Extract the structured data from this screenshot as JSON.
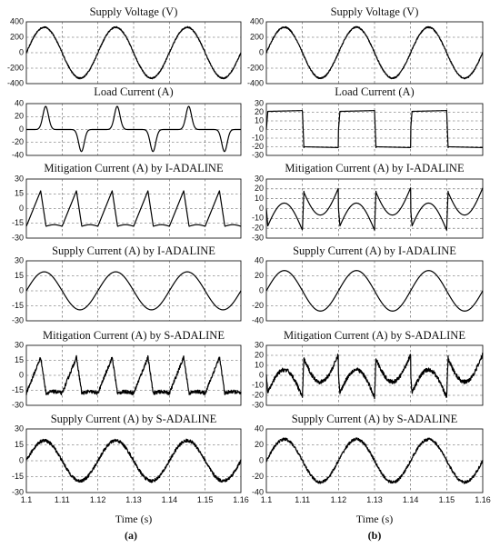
{
  "x_axis": {
    "label": "Time (s)",
    "ticks": [
      "1.1",
      "1.11",
      "1.12",
      "1.13",
      "1.14",
      "1.15",
      "1.16"
    ],
    "range": [
      1.1,
      1.16
    ]
  },
  "column_labels": [
    "(a)",
    "(b)"
  ],
  "chart_data": [
    {
      "type": "line",
      "column": "(a)",
      "row": 1,
      "title": "Supply Voltage (V)",
      "ylim": [
        -400,
        400
      ],
      "yticks": [
        "400",
        "200",
        "0",
        "-200",
        "-400"
      ],
      "grid": true,
      "description": "noisy sinusoid, amplitude about 330 V, period 0.02 s",
      "x": [
        1.1,
        1.105,
        1.11,
        1.115,
        1.12,
        1.125,
        1.13,
        1.135,
        1.14,
        1.145,
        1.15,
        1.155,
        1.16
      ],
      "y": [
        0,
        330,
        0,
        -330,
        0,
        330,
        0,
        -330,
        0,
        330,
        0,
        -330,
        0
      ]
    },
    {
      "type": "line",
      "column": "(a)",
      "row": 2,
      "title": "Load Current (A)",
      "ylim": [
        -40,
        40
      ],
      "yticks": [
        "40",
        "20",
        "0",
        "-20",
        "-40"
      ],
      "grid": true,
      "description": "current pulses of about 35 A near each supply voltage peak, near zero in between",
      "x": [
        1.1,
        1.102,
        1.105,
        1.108,
        1.11,
        1.112,
        1.115,
        1.118,
        1.12,
        1.122,
        1.125,
        1.128,
        1.13,
        1.132,
        1.135,
        1.138,
        1.14,
        1.142,
        1.145,
        1.148,
        1.15,
        1.152,
        1.155,
        1.158,
        1.16
      ],
      "y": [
        0,
        0,
        34,
        2,
        0,
        0,
        -34,
        -2,
        0,
        0,
        34,
        2,
        0,
        0,
        -34,
        -2,
        0,
        0,
        34,
        2,
        0,
        0,
        -34,
        -2,
        0
      ]
    },
    {
      "type": "line",
      "column": "(a)",
      "row": 3,
      "title": "Mitigation Current (A) by I-ADALINE",
      "ylim": [
        -30,
        30
      ],
      "yticks": [
        "30",
        "15",
        "0",
        "-15",
        "-30"
      ],
      "grid": true,
      "description": "sawtooth-like compensating current, about -18 A to +18 A"
    },
    {
      "type": "line",
      "column": "(a)",
      "row": 4,
      "title": "Supply Current (A) by I-ADALINE",
      "ylim": [
        -30,
        30
      ],
      "yticks": [
        "30",
        "15",
        "0",
        "-15",
        "-30"
      ],
      "grid": true,
      "description": "clean sinusoid, amplitude about 19 A, in phase with supply voltage",
      "x": [
        1.1,
        1.105,
        1.11,
        1.115,
        1.12,
        1.125,
        1.13,
        1.135,
        1.14,
        1.145,
        1.15,
        1.155,
        1.16
      ],
      "y": [
        0,
        19,
        0,
        -19,
        0,
        19,
        0,
        -19,
        0,
        19,
        0,
        -19,
        0
      ]
    },
    {
      "type": "line",
      "column": "(a)",
      "row": 5,
      "title": "Mitigation Current (A) by S-ADALINE",
      "ylim": [
        -30,
        30
      ],
      "yticks": [
        "30",
        "15",
        "0",
        "-15",
        "-30"
      ],
      "grid": true,
      "description": "noisy sawtooth-like compensating current, about -18 A to +18 A"
    },
    {
      "type": "line",
      "column": "(a)",
      "row": 6,
      "title": "Supply Current (A) by S-ADALINE",
      "ylim": [
        -30,
        30
      ],
      "yticks": [
        "30",
        "15",
        "0",
        "-15",
        "-30"
      ],
      "grid": true,
      "description": "noisy sinusoid, amplitude about 19 A",
      "x": [
        1.1,
        1.105,
        1.11,
        1.115,
        1.12,
        1.125,
        1.13,
        1.135,
        1.14,
        1.145,
        1.15,
        1.155,
        1.16
      ],
      "y": [
        0,
        19,
        0,
        -19,
        0,
        19,
        0,
        -19,
        0,
        19,
        0,
        -19,
        0
      ]
    },
    {
      "type": "line",
      "column": "(b)",
      "row": 1,
      "title": "Supply Voltage (V)",
      "ylim": [
        -400,
        400
      ],
      "yticks": [
        "400",
        "200",
        "0",
        "-200",
        "-400"
      ],
      "grid": true,
      "description": "noisy sinusoid, amplitude about 330 V",
      "x": [
        1.1,
        1.105,
        1.11,
        1.115,
        1.12,
        1.125,
        1.13,
        1.135,
        1.14,
        1.145,
        1.15,
        1.155,
        1.16
      ],
      "y": [
        0,
        330,
        0,
        -330,
        0,
        330,
        0,
        -330,
        0,
        330,
        0,
        -330,
        0
      ]
    },
    {
      "type": "line",
      "column": "(b)",
      "row": 2,
      "title": "Load Current (A)",
      "ylim": [
        -30,
        30
      ],
      "yticks": [
        "30",
        "20",
        "10",
        "0",
        "-10",
        "-20",
        "-30"
      ],
      "grid": true,
      "description": "square-wave current, about +21 A and -21 A half cycles",
      "x": [
        1.1,
        1.101,
        1.1095,
        1.111,
        1.1195,
        1.121,
        1.1295,
        1.131,
        1.1395,
        1.141,
        1.1495,
        1.151,
        1.1595
      ],
      "y": [
        0,
        21,
        22,
        -20,
        -21,
        21,
        22,
        -20,
        -21,
        21,
        22,
        -20,
        -21
      ]
    },
    {
      "type": "line",
      "column": "(b)",
      "row": 3,
      "title": "Mitigation Current (A) by I-ADALINE",
      "ylim": [
        -30,
        30
      ],
      "yticks": [
        "30",
        "20",
        "10",
        "0",
        "-10",
        "-20",
        "-30"
      ],
      "grid": true,
      "description": "compensating current with sharp spikes near ±20 A at the load current transitions"
    },
    {
      "type": "line",
      "column": "(b)",
      "row": 4,
      "title": "Supply Current (A) by I-ADALINE",
      "ylim": [
        -40,
        40
      ],
      "yticks": [
        "40",
        "20",
        "0",
        "-20",
        "-40"
      ],
      "grid": true,
      "description": "clean sinusoid, amplitude about 27 A",
      "x": [
        1.1,
        1.105,
        1.11,
        1.115,
        1.12,
        1.125,
        1.13,
        1.135,
        1.14,
        1.145,
        1.15,
        1.155,
        1.16
      ],
      "y": [
        0,
        27,
        0,
        -27,
        0,
        27,
        0,
        -27,
        0,
        27,
        0,
        -27,
        0
      ]
    },
    {
      "type": "line",
      "column": "(b)",
      "row": 5,
      "title": "Mitigation Current (A) by S-ADALINE",
      "ylim": [
        -30,
        30
      ],
      "yticks": [
        "30",
        "20",
        "10",
        "0",
        "-10",
        "-20",
        "-30"
      ],
      "grid": true,
      "description": "noisy compensating current with spikes near ±25 A"
    },
    {
      "type": "line",
      "column": "(b)",
      "row": 6,
      "title": "Supply Current (A) by S-ADALINE",
      "ylim": [
        -40,
        40
      ],
      "yticks": [
        "40",
        "20",
        "0",
        "-20",
        "-40"
      ],
      "grid": true,
      "description": "noisy sinusoid, amplitude about 27 A",
      "x": [
        1.1,
        1.105,
        1.11,
        1.115,
        1.12,
        1.125,
        1.13,
        1.135,
        1.14,
        1.145,
        1.15,
        1.155,
        1.16
      ],
      "y": [
        0,
        27,
        0,
        -27,
        0,
        27,
        0,
        -27,
        0,
        27,
        0,
        -27,
        0
      ]
    }
  ]
}
